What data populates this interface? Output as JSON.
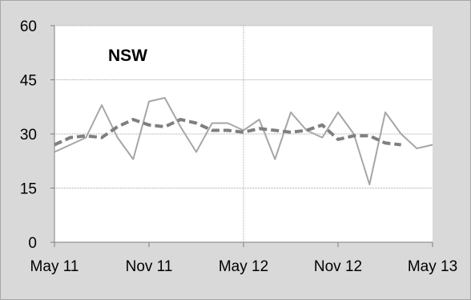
{
  "chart_data": {
    "type": "line",
    "title": "NSW",
    "xlabel": "",
    "ylabel": "",
    "ylim": [
      0,
      60
    ],
    "yticks": [
      "0",
      "15",
      "30",
      "45",
      "60"
    ],
    "xticks": [
      "May 11",
      "Nov 11",
      "May 12",
      "Nov 12",
      "May 13"
    ],
    "grid": true,
    "x": [
      "May 11",
      "Jun 11",
      "Jul 11",
      "Aug 11",
      "Sep 11",
      "Oct 11",
      "Nov 11",
      "Dec 11",
      "Jan 12",
      "Feb 12",
      "Mar 12",
      "Apr 12",
      "May 12",
      "Jun 12",
      "Jul 12",
      "Aug 12",
      "Sep 12",
      "Oct 12",
      "Nov 12",
      "Dec 12",
      "Jan 13",
      "Feb 13",
      "Mar 13",
      "Apr 13",
      "May 13"
    ],
    "series": [
      {
        "style": "solid",
        "color": "#a6a6a6",
        "values": [
          25,
          27,
          29,
          38,
          29,
          23,
          39,
          40,
          32,
          25,
          33,
          33,
          31,
          34,
          23,
          36,
          31,
          29,
          36,
          30,
          16,
          36,
          30,
          26,
          27
        ]
      },
      {
        "style": "dashed",
        "color": "#7f7f7f",
        "values": [
          27,
          29,
          29.5,
          29,
          32,
          34,
          32.5,
          32,
          34,
          33,
          31,
          31,
          30.5,
          31.5,
          31,
          30.5,
          31,
          32.5,
          28.5,
          29.5,
          29.5,
          27.5,
          27,
          null,
          null
        ]
      }
    ]
  }
}
